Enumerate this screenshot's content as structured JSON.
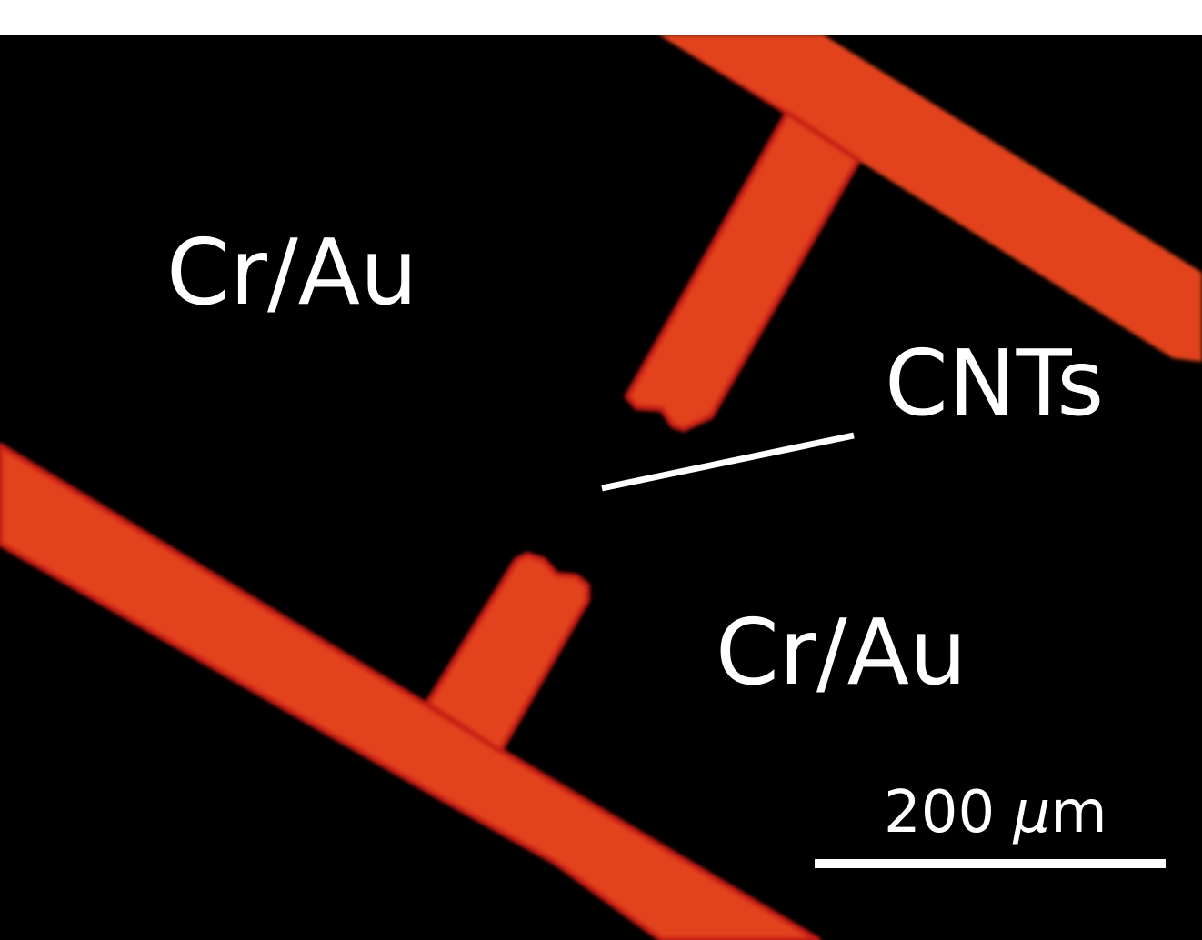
{
  "image": {
    "description_free": true,
    "colors": {
      "background": "#000000",
      "electrode": "#e2421e",
      "electrode_edge": "#c81e12",
      "text": "#ffffff",
      "top_margin": "#ffffff"
    }
  },
  "labels": {
    "electrode_top": "Cr/Au",
    "electrode_bottom": "Cr/Au",
    "cnts": "CNTs"
  },
  "scale": {
    "value": "200 ",
    "unit_mu": "μ",
    "unit_m": "m"
  }
}
